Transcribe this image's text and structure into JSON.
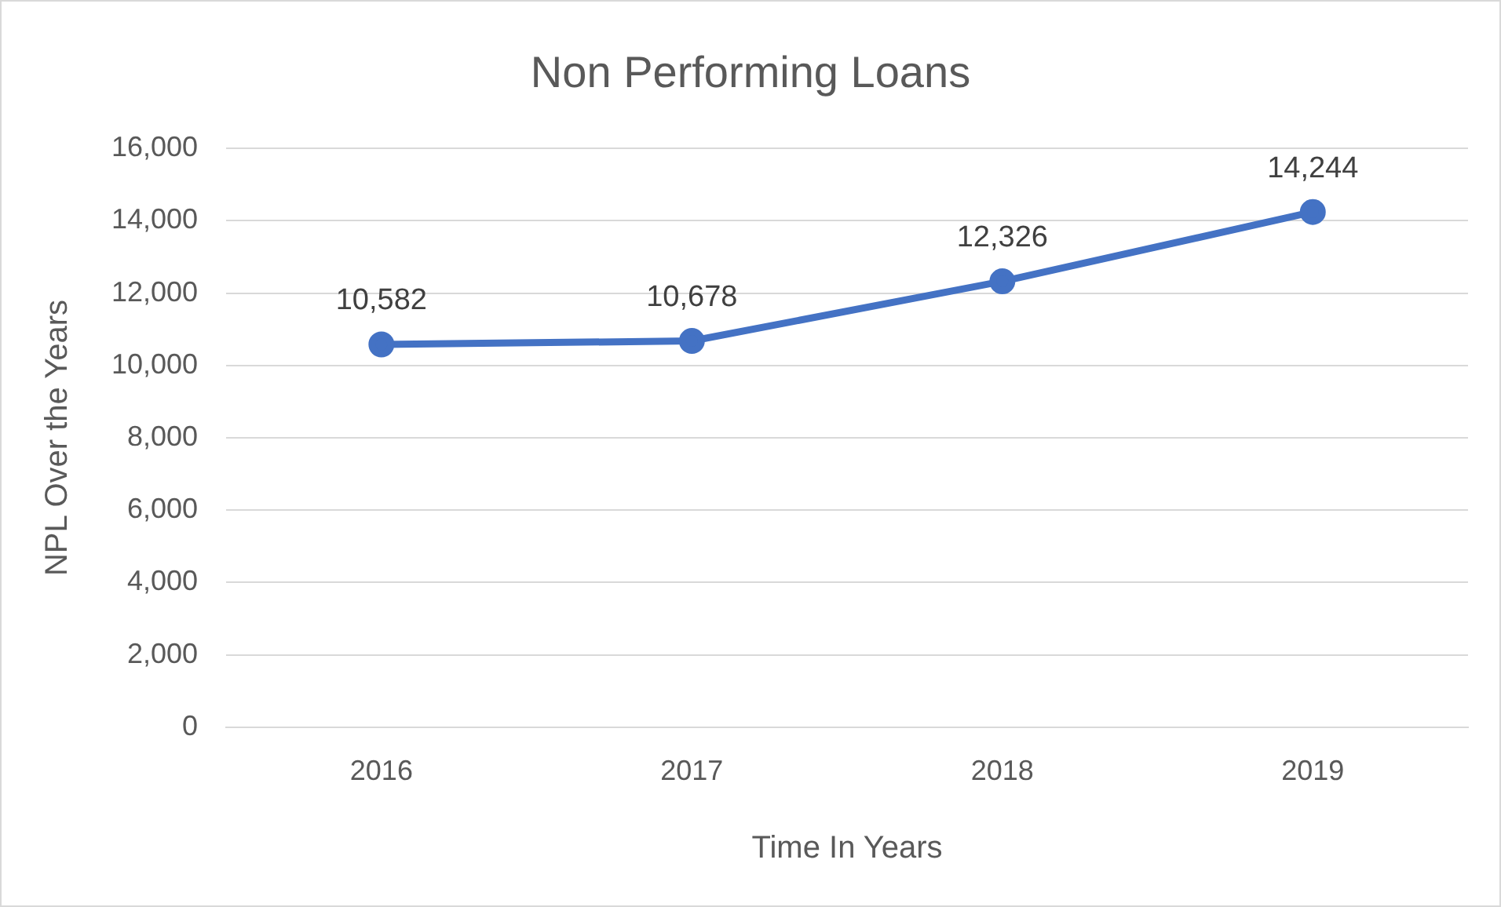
{
  "chart_data": {
    "type": "line",
    "title": "Non Performing Loans",
    "xlabel": "Time In Years",
    "ylabel": "NPL Over the Years",
    "categories": [
      "2016",
      "2017",
      "2018",
      "2019"
    ],
    "series": [
      {
        "color": "#4472c4",
        "values": [
          10582,
          10678,
          12326,
          14244
        ],
        "value_labels": [
          "10,582",
          "10,678",
          "12,326",
          "14,244"
        ]
      }
    ],
    "ylim": [
      0,
      16000
    ],
    "yticks": [
      {
        "value": 0,
        "label": "0"
      },
      {
        "value": 2000,
        "label": "2,000"
      },
      {
        "value": 4000,
        "label": "4,000"
      },
      {
        "value": 6000,
        "label": "6,000"
      },
      {
        "value": 8000,
        "label": "8,000"
      },
      {
        "value": 10000,
        "label": "10,000"
      },
      {
        "value": 12000,
        "label": "12,000"
      },
      {
        "value": 14000,
        "label": "14,000"
      },
      {
        "value": 16000,
        "label": "16,000"
      }
    ],
    "grid": "y",
    "marker": "circle",
    "line_style": "solid"
  }
}
